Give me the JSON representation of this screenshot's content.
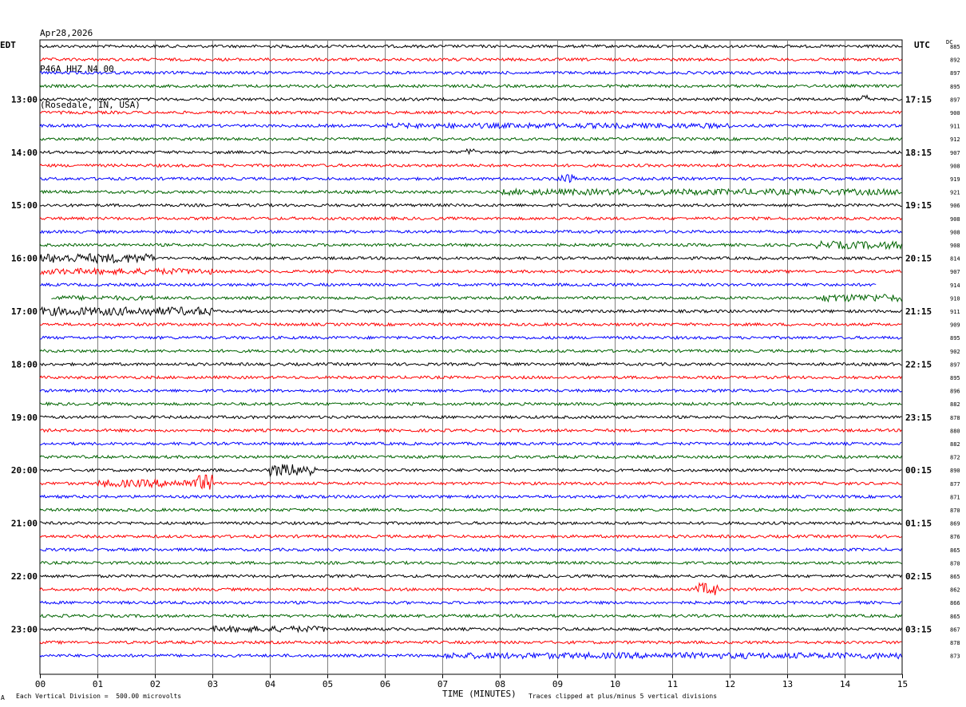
{
  "header": {
    "date": "Apr28,2026",
    "station": "P46A HHZ N4 00",
    "location": "(Rosedale, IN, USA)"
  },
  "left_zone": "EDT",
  "right_zone": "UTC",
  "dc_label": "DC",
  "footer": {
    "scale_note": "Each Vertical Division =  500.00 microvolts",
    "xlabel": "TIME (MINUTES)",
    "clip_note": "Traces clipped at plus/minus 5 vertical divisions",
    "corner_mark": "A"
  },
  "colors": {
    "trace_cycle": [
      "#000000",
      "#ff0000",
      "#0000ff",
      "#006400"
    ],
    "grid": "#808080",
    "background": "#ffffff"
  },
  "chart_data": {
    "type": "line",
    "title": "P46A HHZ N4 00",
    "xlabel": "TIME (MINUTES)",
    "xlim": [
      0,
      15
    ],
    "x_ticks": [
      "00",
      "01",
      "02",
      "03",
      "04",
      "05",
      "06",
      "07",
      "08",
      "09",
      "10",
      "11",
      "12",
      "13",
      "14",
      "15"
    ],
    "left_hour_labels": [
      "13:00",
      "14:00",
      "15:00",
      "16:00",
      "17:00",
      "18:00",
      "19:00",
      "20:00",
      "21:00",
      "22:00",
      "23:00"
    ],
    "right_hour_labels": [
      "17:15",
      "18:15",
      "19:15",
      "20:15",
      "21:15",
      "22:15",
      "23:15",
      "00:15",
      "01:15",
      "02:15",
      "03:15"
    ],
    "dc_offsets": [
      885,
      892,
      897,
      895,
      897,
      900,
      911,
      912,
      907,
      908,
      919,
      921,
      906,
      908,
      908,
      908,
      814,
      907,
      914,
      910,
      911,
      909,
      895,
      902,
      897,
      895,
      896,
      882,
      878,
      880,
      882,
      872,
      890,
      877,
      871,
      870,
      869,
      876,
      865,
      870,
      865,
      862,
      866,
      865,
      867,
      878,
      873
    ],
    "trace_count": 47,
    "traces_per_hour": 4,
    "first_labeled_trace": 4
  }
}
